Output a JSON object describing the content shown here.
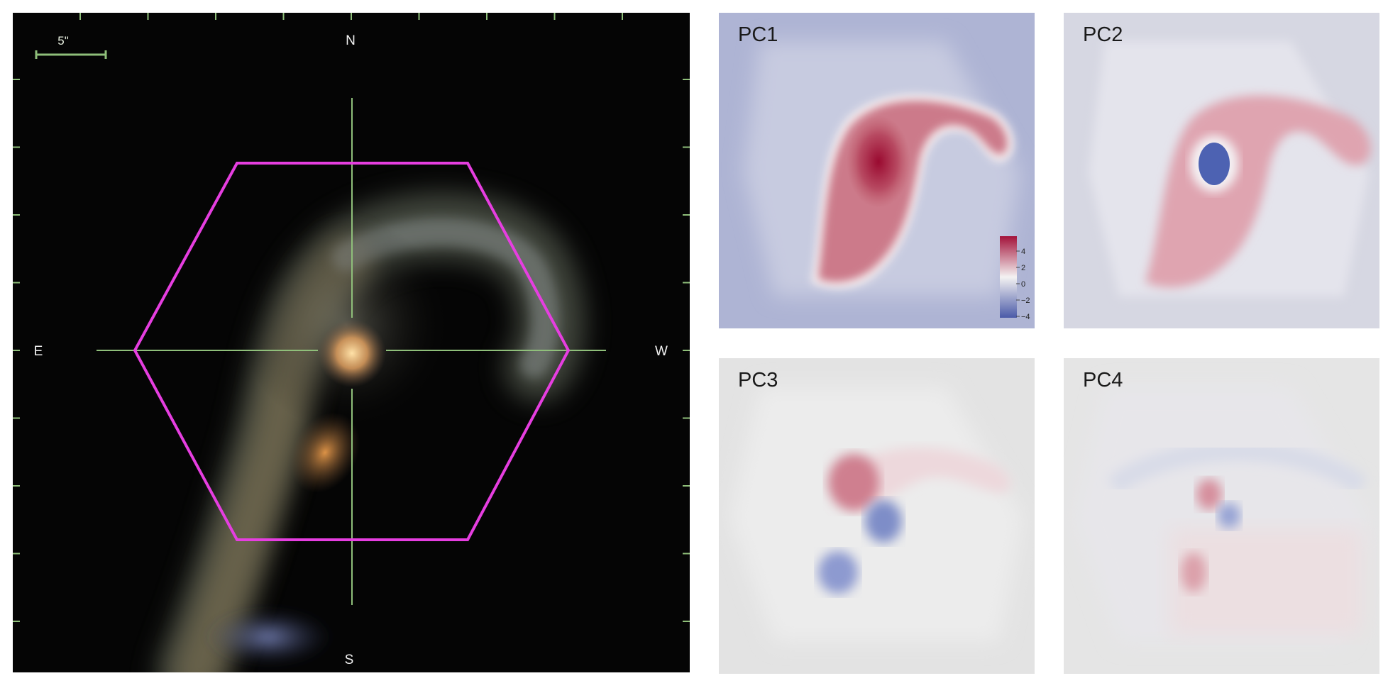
{
  "sky_image": {
    "scale_bar_label": "5\"",
    "compass": {
      "north": "N",
      "south": "S",
      "east": "E",
      "west": "W"
    },
    "hexagon_color": "#e63ee0",
    "reticle_color": "#8fbf7a",
    "background_color": "#050505"
  },
  "panels": [
    {
      "id": "pc1",
      "label": "PC1",
      "background": "#aeb4d4"
    },
    {
      "id": "pc2",
      "label": "PC2",
      "background": "#d6d7e2"
    },
    {
      "id": "pc3",
      "label": "PC3",
      "background": "#e3e3e3"
    },
    {
      "id": "pc4",
      "label": "PC4",
      "background": "#e5e5e5"
    }
  ],
  "colorbar": {
    "ticks": [
      "4",
      "2",
      "0",
      "−2",
      "−4"
    ],
    "colors": {
      "high": "#a3123a",
      "mid": "#f4f2f2",
      "low": "#4a5aa8"
    }
  }
}
